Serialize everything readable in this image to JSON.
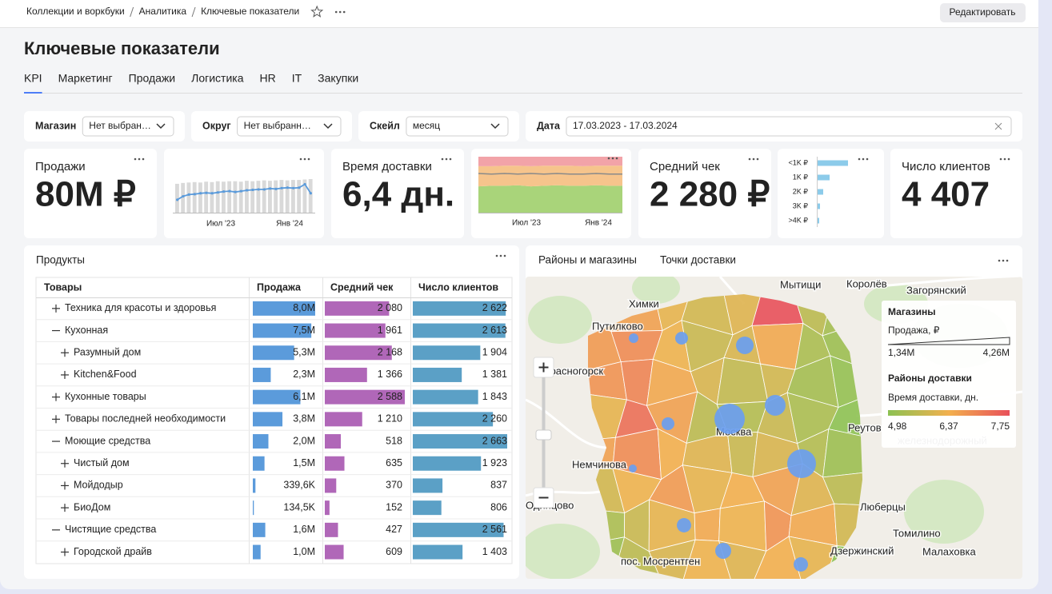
{
  "breadcrumbs": [
    "Коллекции и воркбуки",
    "Аналитика",
    "Ключевые показатели"
  ],
  "edit_button": "Редактировать",
  "title": "Ключевые показатели",
  "tabs": [
    "KPI",
    "Маркетинг",
    "Продажи",
    "Логистика",
    "HR",
    "IT",
    "Закупки"
  ],
  "active_tab": 0,
  "filters": [
    {
      "label": "Магазин",
      "value": "Нет выбран…",
      "placeholder": true
    },
    {
      "label": "Округ",
      "value": "Нет выбранн…",
      "placeholder": true
    },
    {
      "label": "Скейл",
      "value": "месяц",
      "placeholder": false
    },
    {
      "label": "Дата",
      "value": "17.03.2023 - 17.03.2024",
      "placeholder": false
    }
  ],
  "kpis": [
    {
      "title": "Продажи",
      "value": "80M ₽",
      "color": "#5b9bdb"
    },
    {
      "title": "Время доставки",
      "value": "6,4 дн.",
      "color": "#f0ae6b"
    },
    {
      "title": "Средний чек",
      "value": "2 280 ₽",
      "color": "#8ccbea"
    },
    {
      "title": "Число клиентов",
      "value": "4 407",
      "color": "#a45fa6"
    }
  ],
  "sales_trend": {
    "type": "bar-line",
    "x_labels": [
      "Июл '23",
      "Янв '24"
    ],
    "bar_color": "#d9d9d9",
    "line_color": "#5b9bdb",
    "bars": [
      6.7,
      6.9,
      7.0,
      7.1,
      7.0,
      7.2,
      7.1,
      7.3,
      7.2,
      7.3,
      7.3,
      7.2,
      7.4,
      7.3,
      7.4,
      7.5,
      7.4,
      7.5,
      7.6,
      7.5,
      7.6,
      7.6,
      7.7,
      7.8
    ],
    "line": [
      3.0,
      3.8,
      4.2,
      4.3,
      4.5,
      4.6,
      4.5,
      4.7,
      4.9,
      5.0,
      4.8,
      5.0,
      5.2,
      5.3,
      5.4,
      5.4,
      5.6,
      5.5,
      5.7,
      5.8,
      5.7,
      5.8,
      6.6,
      4.5
    ]
  },
  "delivery_trend": {
    "type": "area",
    "x_labels": [
      "Июл '23",
      "Янв '24"
    ],
    "series": [
      {
        "color": "#a9d47a",
        "values": [
          47,
          48,
          48,
          49,
          47,
          48,
          49,
          48,
          48,
          49,
          48,
          48
        ]
      },
      {
        "color": "#f6c48c",
        "values": [
          36,
          35,
          36,
          35,
          36,
          36,
          35,
          36,
          35,
          35,
          36,
          36
        ]
      },
      {
        "color": "#f2a3a8",
        "values": [
          17,
          17,
          16,
          16,
          17,
          16,
          16,
          16,
          17,
          16,
          16,
          16
        ]
      }
    ],
    "line_color": "#8a8a8a",
    "line": [
      70,
      69,
      70,
      69,
      70,
      69,
      70,
      69,
      69,
      70,
      69,
      69
    ]
  },
  "check_distribution": {
    "type": "bar",
    "categories": [
      "<1K ₽",
      "1K ₽",
      "2K ₽",
      "3K ₽",
      ">4K ₽"
    ],
    "values": [
      38,
      15,
      7,
      3,
      2
    ],
    "color": "#8ccbea"
  },
  "products": {
    "title": "Продукты",
    "columns": [
      "Товары",
      "Продажа",
      "Средний чек",
      "Число клиентов"
    ],
    "sales_color": "#5b9bdb",
    "avg_check_color": "#b067b8",
    "clients_color": "#5ba0c6",
    "rows": [
      {
        "name": "Техника для красоты и здоровья",
        "indent": 0,
        "expanded": false,
        "sales": 8.0,
        "sales_label": "8,0M",
        "avg_check": 2080,
        "avg_check_label": "2 080",
        "clients": 2622,
        "clients_label": "2 622"
      },
      {
        "name": "Кухонная",
        "indent": 0,
        "expanded": true,
        "sales": 7.5,
        "sales_label": "7,5M",
        "avg_check": 1961,
        "avg_check_label": "1 961",
        "clients": 2613,
        "clients_label": "2 613"
      },
      {
        "name": "Разумный дом",
        "indent": 1,
        "expanded": false,
        "sales": 5.3,
        "sales_label": "5,3M",
        "avg_check": 2168,
        "avg_check_label": "2 168",
        "clients": 1904,
        "clients_label": "1 904"
      },
      {
        "name": "Kitchen&Food",
        "indent": 1,
        "expanded": false,
        "sales": 2.3,
        "sales_label": "2,3M",
        "avg_check": 1366,
        "avg_check_label": "1 366",
        "clients": 1381,
        "clients_label": "1 381"
      },
      {
        "name": "Кухонные товары",
        "indent": 0,
        "expanded": false,
        "sales": 6.1,
        "sales_label": "6,1M",
        "avg_check": 2588,
        "avg_check_label": "2 588",
        "clients": 1843,
        "clients_label": "1 843"
      },
      {
        "name": "Товары последней необходимости",
        "indent": 0,
        "expanded": false,
        "sales": 3.8,
        "sales_label": "3,8M",
        "avg_check": 1210,
        "avg_check_label": "1 210",
        "clients": 2260,
        "clients_label": "2 260"
      },
      {
        "name": "Моющие средства",
        "indent": 0,
        "expanded": true,
        "sales": 2.0,
        "sales_label": "2,0M",
        "avg_check": 518,
        "avg_check_label": "518",
        "clients": 2663,
        "clients_label": "2 663"
      },
      {
        "name": "Чистый дом",
        "indent": 1,
        "expanded": false,
        "sales": 1.5,
        "sales_label": "1,5M",
        "avg_check": 635,
        "avg_check_label": "635",
        "clients": 1923,
        "clients_label": "1 923"
      },
      {
        "name": "Мойдодыр",
        "indent": 1,
        "expanded": false,
        "sales": 0.3396,
        "sales_label": "339,6K",
        "avg_check": 370,
        "avg_check_label": "370",
        "clients": 837,
        "clients_label": "837"
      },
      {
        "name": "БиоДом",
        "indent": 1,
        "expanded": false,
        "sales": 0.1345,
        "sales_label": "134,5K",
        "avg_check": 152,
        "avg_check_label": "152",
        "clients": 806,
        "clients_label": "806"
      },
      {
        "name": "Чистящие средства",
        "indent": 0,
        "expanded": true,
        "sales": 1.6,
        "sales_label": "1,6M",
        "avg_check": 427,
        "avg_check_label": "427",
        "clients": 2561,
        "clients_label": "2 561"
      },
      {
        "name": "Городской драйв",
        "indent": 1,
        "expanded": false,
        "sales": 1.0,
        "sales_label": "1,0M",
        "avg_check": 609,
        "avg_check_label": "609",
        "clients": 1403,
        "clients_label": "1 403"
      }
    ]
  },
  "map": {
    "tabs": [
      "Районы и магазины",
      "Точки доставки"
    ],
    "active_tab": 0,
    "places": [
      "Химки",
      "Мытищи",
      "Королёв",
      "Загорянский",
      "Путилково",
      "Красногорск",
      "Москва",
      "Реутов",
      "железнодорожный",
      "Немчинова",
      "Одинцово",
      "Люберцы",
      "Томилино",
      "Дзержинский",
      "Малаховка",
      "пос. Мосрентген"
    ],
    "store_color": "#6a9ef0",
    "stores": [
      1.55,
      1.97,
      2.59,
      3.0,
      4.26,
      4.05,
      1.97,
      1.34,
      2.17,
      2.38,
      2.17
    ],
    "scale_colors": [
      "#8cc152",
      "#f2b04e",
      "#e8505a"
    ],
    "districts": [
      6.4,
      6.6,
      6.2,
      5.9,
      6.1,
      7.75,
      5.6,
      5.3,
      6.7,
      6.9,
      6.3,
      5.8,
      6.0,
      6.5,
      5.4,
      5.2,
      6.8,
      7.0,
      6.5,
      6.0,
      5.7,
      5.9,
      5.3,
      5.1,
      6.2,
      7.3,
      6.6,
      5.6,
      5.5,
      5.8,
      5.4,
      5.0,
      6.6,
      6.9,
      6.4,
      6.1,
      5.8,
      6.0,
      5.5,
      5.2,
      5.9,
      6.3,
      6.7,
      6.2,
      6.4,
      6.6,
      6.1,
      5.6,
      5.4,
      5.8,
      6.2,
      6.5,
      6.3,
      6.8,
      6.5,
      5.9,
      5.2,
      5.6,
      6.0,
      6.3,
      6.1,
      6.4,
      6.2,
      4.98
    ],
    "legend": {
      "stores_title": "Магазины",
      "stores_measure": "Продажа, ₽",
      "stores_min": "1,34M",
      "stores_max": "4,26M",
      "districts_title": "Районы доставки",
      "districts_measure": "Время доставки, дн.",
      "districts_ticks": [
        "4,98",
        "6,37",
        "7,75"
      ]
    }
  }
}
